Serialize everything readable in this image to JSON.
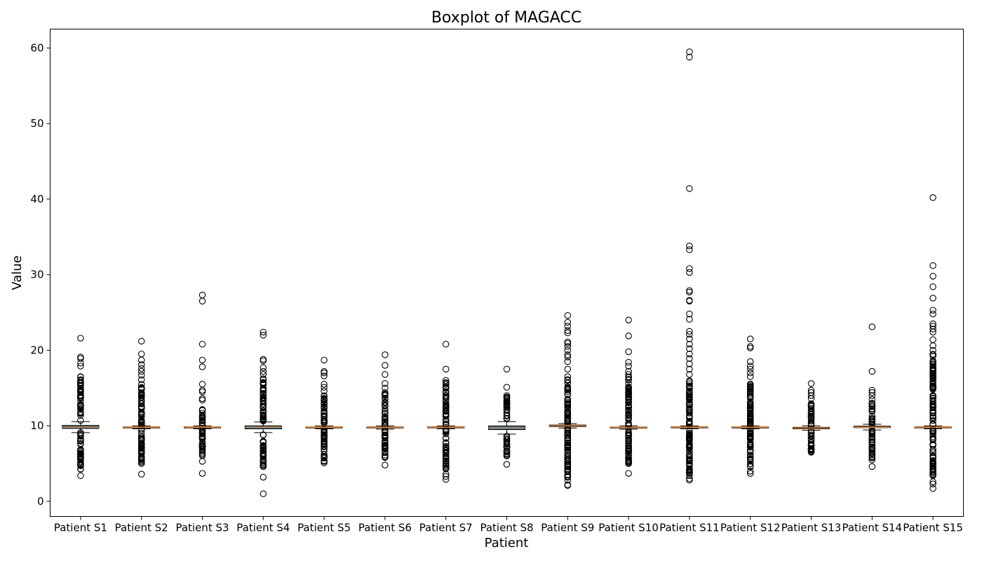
{
  "chart_data": {
    "type": "box",
    "title": "Boxplot of MAGACC",
    "xlabel": "Patient",
    "ylabel": "Value",
    "ylim": [
      -2,
      62.5
    ],
    "yticks": [
      0,
      10,
      20,
      30,
      40,
      50,
      60
    ],
    "grid": false,
    "legend": "none",
    "colors": {
      "box_fill": "#1f77b4",
      "median": "#ff7f0e",
      "outline": "#000000",
      "background": "#ffffff"
    },
    "categories": [
      "Patient S1",
      "Patient S2",
      "Patient S3",
      "Patient S4",
      "Patient S5",
      "Patient S6",
      "Patient S7",
      "Patient S8",
      "Patient S9",
      "Patient S10",
      "Patient S11",
      "Patient S12",
      "Patient S13",
      "Patient S14",
      "Patient S15"
    ],
    "boxes": [
      {
        "q1": 9.65,
        "median": 9.8,
        "q3": 10.05,
        "whisker_low": 9.1,
        "whisker_high": 10.55
      },
      {
        "q1": 9.75,
        "median": 9.81,
        "q3": 9.86,
        "whisker_low": 9.6,
        "whisker_high": 10.0
      },
      {
        "q1": 9.76,
        "median": 9.81,
        "q3": 9.86,
        "whisker_low": 9.6,
        "whisker_high": 10.0
      },
      {
        "q1": 9.6,
        "median": 9.8,
        "q3": 10.0,
        "whisker_low": 9.1,
        "whisker_high": 10.5
      },
      {
        "q1": 9.75,
        "median": 9.8,
        "q3": 9.85,
        "whisker_low": 9.6,
        "whisker_high": 10.0
      },
      {
        "q1": 9.72,
        "median": 9.78,
        "q3": 9.84,
        "whisker_low": 9.55,
        "whisker_high": 10.0
      },
      {
        "q1": 9.75,
        "median": 9.8,
        "q3": 9.86,
        "whisker_low": 9.6,
        "whisker_high": 10.0
      },
      {
        "q1": 9.5,
        "median": 9.72,
        "q3": 9.98,
        "whisker_low": 8.9,
        "whisker_high": 10.55
      },
      {
        "q1": 9.9,
        "median": 10.0,
        "q3": 10.1,
        "whisker_low": 9.7,
        "whisker_high": 10.3
      },
      {
        "q1": 9.7,
        "median": 9.75,
        "q3": 9.82,
        "whisker_low": 9.55,
        "whisker_high": 10.0
      },
      {
        "q1": 9.75,
        "median": 9.8,
        "q3": 9.86,
        "whisker_low": 9.6,
        "whisker_high": 10.0
      },
      {
        "q1": 9.75,
        "median": 9.8,
        "q3": 9.85,
        "whisker_low": 9.6,
        "whisker_high": 10.0
      },
      {
        "q1": 9.6,
        "median": 9.7,
        "q3": 9.8,
        "whisker_low": 9.4,
        "whisker_high": 10.0
      },
      {
        "q1": 9.75,
        "median": 9.8,
        "q3": 9.95,
        "whisker_low": 9.45,
        "whisker_high": 10.2
      },
      {
        "q1": 9.75,
        "median": 9.8,
        "q3": 9.86,
        "whisker_low": 9.6,
        "whisker_high": 10.0
      }
    ],
    "outlier_ranges": [
      {
        "low": [
          4.2,
          9.1
        ],
        "high": [
          10.55,
          16.5
        ]
      },
      {
        "low": [
          5.0,
          9.6
        ],
        "high": [
          10.0,
          16.0
        ]
      },
      {
        "low": [
          6.0,
          9.6
        ],
        "high": [
          10.0,
          12.3
        ]
      },
      {
        "low": [
          4.6,
          9.1
        ],
        "high": [
          10.5,
          16.5
        ]
      },
      {
        "low": [
          5.3,
          9.6
        ],
        "high": [
          10.0,
          14.2
        ]
      },
      {
        "low": [
          5.8,
          9.55
        ],
        "high": [
          10.0,
          14.2
        ]
      },
      {
        "low": [
          4.0,
          9.6
        ],
        "high": [
          10.0,
          15.9
        ]
      },
      {
        "low": [
          6.0,
          8.9
        ],
        "high": [
          10.55,
          14.0
        ]
      },
      {
        "low": [
          3.0,
          9.7
        ],
        "high": [
          10.3,
          16.2
        ]
      },
      {
        "low": [
          5.0,
          9.55
        ],
        "high": [
          10.0,
          16.5
        ]
      },
      {
        "low": [
          3.5,
          9.6
        ],
        "high": [
          10.0,
          16.0
        ]
      },
      {
        "low": [
          4.5,
          9.6
        ],
        "high": [
          10.0,
          16.0
        ]
      },
      {
        "low": [
          6.6,
          9.4
        ],
        "high": [
          10.0,
          13.0
        ]
      },
      {
        "low": [
          5.5,
          9.45
        ],
        "high": [
          10.2,
          13.0
        ]
      },
      {
        "low": [
          3.5,
          9.6
        ],
        "high": [
          10.0,
          19.5
        ]
      }
    ],
    "extreme_outliers": [
      [
        3.4,
        4.8,
        5.1,
        16.5,
        17.9,
        18.3,
        18.9,
        19.1,
        21.6
      ],
      [
        3.6,
        5.0,
        16.1,
        16.7,
        17.2,
        17.6,
        18.1,
        18.7,
        19.5,
        21.2
      ],
      [
        3.7,
        5.3,
        6.2,
        13.4,
        13.6,
        14.5,
        14.7,
        15.5,
        17.8,
        18.7,
        20.8,
        26.5,
        27.3
      ],
      [
        1.0,
        3.2,
        4.6,
        16.8,
        17.2,
        17.7,
        18.6,
        18.8,
        22.0,
        22.4
      ],
      [
        5.1,
        5.3,
        14.6,
        15.1,
        15.5,
        16.6,
        17.0,
        17.2,
        18.7
      ],
      [
        4.8,
        5.8,
        14.4,
        15.0,
        15.6,
        16.8,
        18.0,
        19.4
      ],
      [
        2.9,
        3.3,
        3.6,
        16.0,
        17.5,
        20.8
      ],
      [
        4.9,
        6.0,
        14.0,
        15.1,
        17.5
      ],
      [
        2.1,
        2.2,
        2.8,
        3.3,
        16.5,
        17.5,
        18.5,
        19.1,
        19.4,
        20.0,
        20.5,
        20.9,
        21.1,
        22.3,
        22.6,
        23.2,
        23.7,
        24.6
      ],
      [
        3.7,
        5.0,
        5.2,
        16.8,
        17.2,
        17.9,
        18.4,
        19.8,
        21.9,
        24.0
      ],
      [
        2.8,
        3.0,
        3.4,
        3.8,
        4.3,
        16.8,
        17.5,
        18.2,
        18.9,
        19.5,
        20.2,
        20.8,
        21.5,
        22.1,
        22.5,
        24.1,
        24.8,
        26.5,
        26.6,
        27.7,
        27.9,
        30.3,
        30.8,
        33.3,
        33.8,
        41.4,
        58.8,
        59.5
      ],
      [
        3.7,
        4.0,
        16.5,
        17.0,
        17.5,
        17.9,
        18.5,
        20.3,
        20.5,
        21.5
      ],
      [
        6.5,
        6.6,
        13.6,
        14.0,
        14.4,
        14.7,
        15.6
      ],
      [
        4.6,
        5.5,
        5.9,
        13.5,
        14.0,
        14.4,
        14.7,
        17.2,
        23.1
      ],
      [
        1.7,
        2.3,
        2.6,
        3.4,
        20.0,
        20.6,
        21.4,
        22.4,
        22.8,
        23.2,
        23.5,
        24.8,
        25.3,
        26.9,
        28.4,
        29.8,
        31.2,
        40.2
      ]
    ]
  }
}
